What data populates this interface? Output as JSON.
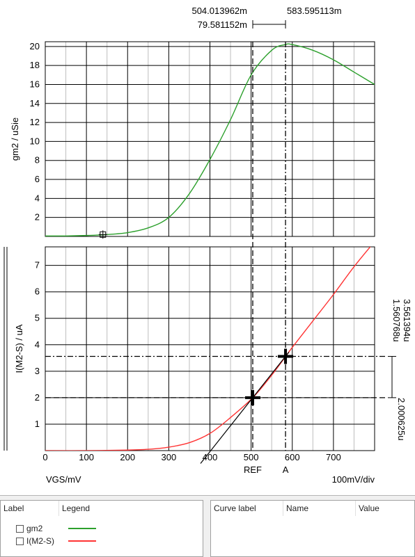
{
  "chart_data": {
    "type": "line",
    "x": {
      "label": "VGS/mV",
      "scale_text": "100mV/div",
      "range": [
        0,
        800
      ],
      "ticks": [
        "0",
        "100",
        "200",
        "300",
        "400",
        "500",
        "600",
        "700"
      ],
      "tick_values": [
        0,
        100,
        200,
        300,
        400,
        500,
        600,
        700
      ]
    },
    "top_plot": {
      "ylabel": "gm2 / uSie",
      "ylim": [
        0,
        20.5
      ],
      "yticks": [
        "2",
        "4",
        "6",
        "8",
        "10",
        "12",
        "14",
        "16",
        "18",
        "20"
      ],
      "ytick_values": [
        2,
        4,
        6,
        8,
        10,
        12,
        14,
        16,
        18,
        20
      ],
      "series": [
        {
          "name": "gm2",
          "color": "#2ca02c",
          "x": [
            0,
            50,
            100,
            150,
            200,
            250,
            300,
            350,
            400,
            450,
            500,
            550,
            583,
            600,
            650,
            700,
            750,
            800
          ],
          "y": [
            0.05,
            0.05,
            0.1,
            0.2,
            0.4,
            0.9,
            2.0,
            4.5,
            8.1,
            12.3,
            17.0,
            19.6,
            20.2,
            20.2,
            19.6,
            18.6,
            17.3,
            16.0
          ]
        }
      ]
    },
    "bottom_plot": {
      "ylabel": "I(M2-S) / uA",
      "ylim": [
        0,
        7.7
      ],
      "yticks": [
        "1",
        "2",
        "3",
        "4",
        "5",
        "6",
        "7"
      ],
      "ytick_values": [
        1,
        2,
        3,
        4,
        5,
        6,
        7
      ],
      "series": [
        {
          "name": "I(M2-S)",
          "color": "#ff3333",
          "x": [
            0,
            100,
            200,
            250,
            300,
            350,
            400,
            450,
            504,
            550,
            584,
            600,
            650,
            700,
            750,
            800
          ],
          "y": [
            0.0,
            0.0,
            0.02,
            0.05,
            0.13,
            0.3,
            0.65,
            1.25,
            2.0,
            2.85,
            3.56,
            3.9,
            4.9,
            5.9,
            6.95,
            7.9
          ]
        }
      ]
    },
    "cursors": {
      "ref": {
        "label": "REF",
        "x": 504.013962,
        "x_text": "504.013962m",
        "y": 2.000625,
        "y_text": "2.000625u"
      },
      "a": {
        "label": "A",
        "x": 583.595113,
        "x_text": "583.595113m",
        "y": 3.561394,
        "y_text": "3.561394u"
      },
      "dx_text": "79.581152m",
      "dy_text": "1.560768u"
    },
    "top_marker": {
      "x": 140,
      "y": 0.2
    }
  },
  "legend_panel": {
    "col_label": "Label",
    "col_legend": "Legend",
    "items": [
      {
        "label": "gm2",
        "color": "#2ca02c"
      },
      {
        "label": "I(M2-S)",
        "color": "#ff3333"
      }
    ]
  },
  "curve_panel": {
    "col_curve_label": "Curve label",
    "col_name": "Name",
    "col_value": "Value"
  }
}
